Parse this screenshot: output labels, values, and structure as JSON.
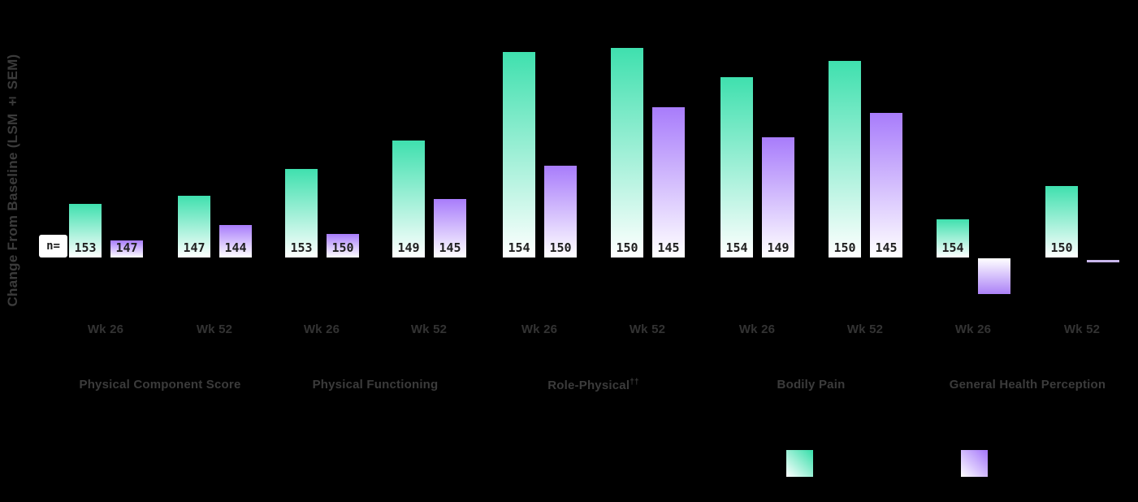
{
  "page": {
    "background": "#000000"
  },
  "y_axis_label": "Change From Baseline (LSM ± SEM)",
  "n_equals_label": "n=",
  "colors": {
    "background": "#000000",
    "teal": "#3fe0ae",
    "purple": "#a87cfb",
    "purple_negative_bottom": "#ab81f7",
    "purple_tiny_bar": "#c9b7ec",
    "axis_text": "#3b3b3b",
    "n_text": "#1f1f1f",
    "n_chip_background": "#ffffff"
  },
  "chart_data": {
    "type": "bar",
    "title": "",
    "xlabel": "",
    "ylabel": "Change From Baseline (LSM ± SEM)",
    "y_axis_note": "no numeric tick labels visible; series values are approximate relative units (bar height above baseline, baseline = 0)",
    "grid": false,
    "groups": [
      {
        "label": "Physical Component Score",
        "sup": ""
      },
      {
        "label": "Physical Functioning",
        "sup": ""
      },
      {
        "label": "Role-Physical",
        "sup": "††"
      },
      {
        "label": "Bodily Pain",
        "sup": ""
      },
      {
        "label": "General Health Perception",
        "sup": ""
      }
    ],
    "x_ticks": [
      "Wk 26",
      "Wk 52",
      "Wk 26",
      "Wk 52",
      "Wk 26",
      "Wk 52",
      "Wk 26",
      "Wk 52",
      "Wk 26",
      "Wk 52"
    ],
    "series": [
      {
        "name": "teal",
        "color": "#3fe0ae",
        "values": [
          66,
          76,
          109,
          144,
          253,
          258,
          222,
          242,
          47,
          88
        ]
      },
      {
        "name": "purple",
        "color": "#a87cfb",
        "values": [
          21,
          40,
          29,
          72,
          113,
          185,
          148,
          178,
          -44,
          -6
        ]
      }
    ],
    "n_values": {
      "teal": [
        "153",
        "147",
        "153",
        "149",
        "154",
        "150",
        "154",
        "150",
        "154",
        "150"
      ],
      "purple": [
        "147",
        "144",
        "150",
        "145",
        "150",
        "145",
        "149",
        "145",
        null,
        null
      ]
    },
    "legend": {
      "position": "bottom",
      "labels_visible": false,
      "entries": [
        {
          "name": "teal",
          "color": "#3fe0ae"
        },
        {
          "name": "purple",
          "color": "#a87cfb"
        }
      ]
    }
  }
}
